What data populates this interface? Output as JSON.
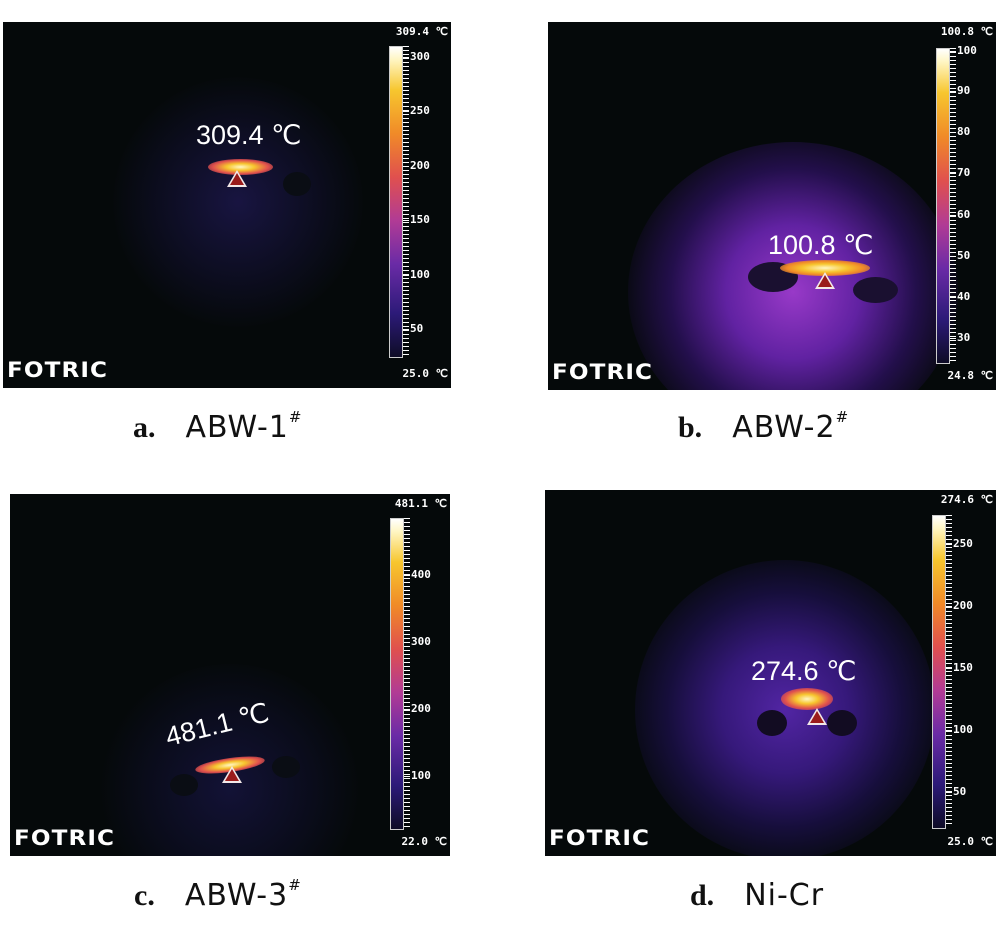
{
  "panels": [
    {
      "id": "a",
      "readout": "309.4 ℃",
      "scale_top": "309.4 ℃",
      "scale_bottom": "25.0 ℃",
      "ticks": [
        "300",
        "250",
        "200",
        "150",
        "100",
        "50"
      ],
      "logo": "FOTRIC",
      "caption_letter": "a.",
      "caption_name": "ABW-1",
      "caption_sup": "#"
    },
    {
      "id": "b",
      "readout": "100.8 ℃",
      "scale_top": "100.8 ℃",
      "scale_bottom": "24.8 ℃",
      "ticks": [
        "100",
        "90",
        "80",
        "70",
        "60",
        "50",
        "40",
        "30"
      ],
      "logo": "FOTRIC",
      "caption_letter": "b.",
      "caption_name": "ABW-2",
      "caption_sup": "#"
    },
    {
      "id": "c",
      "readout": "481.1 ℃",
      "scale_top": "481.1 ℃",
      "scale_bottom": "22.0 ℃",
      "ticks": [
        "400",
        "300",
        "200",
        "100"
      ],
      "logo": "FOTRIC",
      "caption_letter": "c.",
      "caption_name": "ABW-3",
      "caption_sup": "#"
    },
    {
      "id": "d",
      "readout": "274.6 ℃",
      "scale_top": "274.6 ℃",
      "scale_bottom": "25.0 ℃",
      "ticks": [
        "250",
        "200",
        "150",
        "100",
        "50"
      ],
      "logo": "FOTRIC",
      "caption_letter": "d.",
      "caption_name": "Ni-Cr",
      "caption_sup": ""
    }
  ],
  "colors": {
    "background": "#05090a",
    "marker_fill": "#9a1b1b",
    "hot": "#fff6c4",
    "mid": "#f08a28",
    "cool": "#6a2ba6"
  },
  "icons": [
    "hotspot-marker-icon",
    "fotric-logo"
  ]
}
